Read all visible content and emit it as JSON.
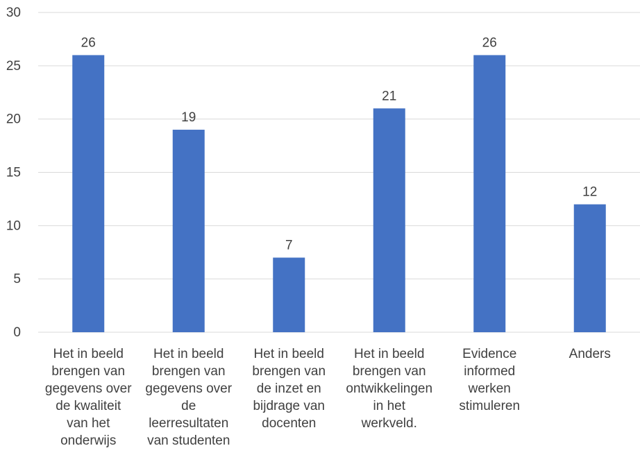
{
  "chart_data": {
    "type": "bar",
    "title": "",
    "xlabel": "",
    "ylabel": "",
    "categories": [
      [
        "Het in beeld",
        "brengen van",
        "gegevens over",
        "de kwaliteit",
        "van het",
        "onderwijs"
      ],
      [
        "Het in beeld",
        "brengen van",
        "gegevens over",
        "de",
        "leerresultaten",
        "van studenten"
      ],
      [
        "Het in beeld",
        "brengen van",
        "de inzet en",
        "bijdrage van",
        "docenten"
      ],
      [
        "Het in beeld",
        "brengen van",
        "ontwikkelingen",
        "in het",
        "werkveld."
      ],
      [
        "Evidence",
        "informed",
        "werken",
        "stimuleren"
      ],
      [
        "Anders"
      ]
    ],
    "values": [
      26,
      19,
      7,
      21,
      26,
      12
    ],
    "ylim": [
      0,
      30
    ],
    "yticks": [
      0,
      5,
      10,
      15,
      20,
      25,
      30
    ],
    "grid": true,
    "legend": "none",
    "data_labels": true,
    "colors": {
      "bar": "#4472C4",
      "grid": "#D9D9D9",
      "text": "#404040"
    }
  }
}
